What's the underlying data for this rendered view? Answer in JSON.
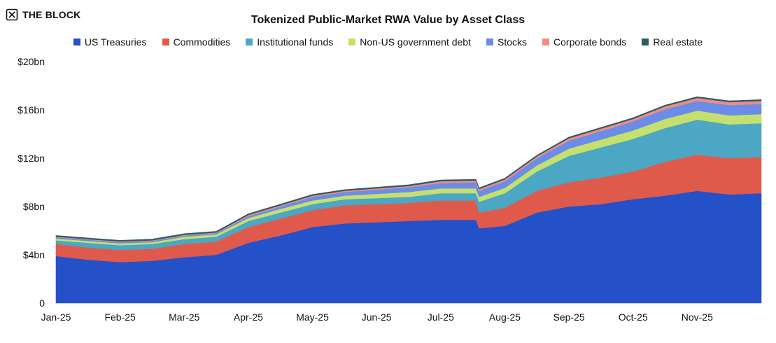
{
  "brand": {
    "name": "THE BLOCK",
    "icon": "the-block-logo-icon"
  },
  "chart_data": {
    "type": "area",
    "stacked": true,
    "title": "Tokenized Public-Market RWA Value by Asset Class",
    "xlabel": "",
    "ylabel": "",
    "y_unit": "bn USD",
    "ylim": [
      0,
      20
    ],
    "yticks": [
      0,
      4,
      8,
      12,
      16,
      20
    ],
    "ytick_labels": [
      "0",
      "$4bn",
      "$8bn",
      "$12bn",
      "$16bn",
      "$20bn"
    ],
    "x": [
      "Jan-25",
      "Jan-25b",
      "Feb-25",
      "Feb-25b",
      "Mar-25",
      "Mar-25b",
      "Apr-25",
      "Apr-25b",
      "May-25",
      "May-25b",
      "Jun-25",
      "Jun-25b",
      "Jul-25",
      "Jul-25b",
      "Jul-25c",
      "Aug-25",
      "Aug-25b",
      "Sep-25",
      "Sep-25b",
      "Oct-25",
      "Oct-25b",
      "Nov-25",
      "Nov-25b",
      "Nov-25c"
    ],
    "x_index": [
      0,
      0.5,
      1,
      1.5,
      2,
      2.5,
      3,
      3.5,
      4,
      4.5,
      5,
      5.5,
      6,
      6.55,
      6.6,
      7,
      7.5,
      8,
      8.5,
      9,
      9.5,
      10,
      10.5,
      11
    ],
    "xtick_labels": [
      "Jan-25",
      "Feb-25",
      "Mar-25",
      "Apr-25",
      "May-25",
      "Jun-25",
      "Jul-25",
      "Aug-25",
      "Sep-25",
      "Oct-25",
      "Nov-25"
    ],
    "grid": false,
    "legend_position": "top-center",
    "series": [
      {
        "name": "US Treasuries",
        "color": "#2450c8",
        "values": [
          3.9,
          3.6,
          3.4,
          3.5,
          3.8,
          4.0,
          5.0,
          5.6,
          6.3,
          6.6,
          6.7,
          6.8,
          6.9,
          6.9,
          6.2,
          6.4,
          7.5,
          8.0,
          8.2,
          8.6,
          8.9,
          9.3,
          9.0,
          9.1
        ]
      },
      {
        "name": "Commodities",
        "color": "#e05a4b",
        "values": [
          1.0,
          1.0,
          1.0,
          1.0,
          1.1,
          1.1,
          1.3,
          1.4,
          1.4,
          1.5,
          1.5,
          1.5,
          1.6,
          1.6,
          1.3,
          1.5,
          1.8,
          2.0,
          2.2,
          2.3,
          2.8,
          3.0,
          3.0,
          3.0
        ]
      },
      {
        "name": "Institutional funds",
        "color": "#4ba7c3",
        "values": [
          0.3,
          0.4,
          0.4,
          0.4,
          0.4,
          0.4,
          0.5,
          0.5,
          0.5,
          0.5,
          0.5,
          0.5,
          0.6,
          0.6,
          0.9,
          1.2,
          1.6,
          2.2,
          2.5,
          2.7,
          2.8,
          2.9,
          2.8,
          2.8
        ]
      },
      {
        "name": "Non-US government debt",
        "color": "#c5e06c",
        "values": [
          0.15,
          0.15,
          0.15,
          0.15,
          0.2,
          0.2,
          0.25,
          0.3,
          0.3,
          0.3,
          0.35,
          0.4,
          0.4,
          0.4,
          0.4,
          0.45,
          0.5,
          0.6,
          0.65,
          0.7,
          0.75,
          0.75,
          0.75,
          0.75
        ]
      },
      {
        "name": "Stocks",
        "color": "#6b8de8",
        "values": [
          0.1,
          0.1,
          0.1,
          0.1,
          0.1,
          0.1,
          0.15,
          0.2,
          0.3,
          0.3,
          0.35,
          0.4,
          0.45,
          0.5,
          0.5,
          0.55,
          0.6,
          0.65,
          0.7,
          0.75,
          0.8,
          0.8,
          0.85,
          0.85
        ]
      },
      {
        "name": "Corporate bonds",
        "color": "#ef8c86",
        "values": [
          0.05,
          0.05,
          0.05,
          0.05,
          0.05,
          0.05,
          0.1,
          0.1,
          0.1,
          0.1,
          0.1,
          0.1,
          0.15,
          0.15,
          0.15,
          0.15,
          0.15,
          0.2,
          0.2,
          0.2,
          0.25,
          0.25,
          0.25,
          0.25
        ]
      },
      {
        "name": "Real estate",
        "color": "#2e5d66",
        "values": [
          0.1,
          0.1,
          0.1,
          0.1,
          0.1,
          0.1,
          0.1,
          0.1,
          0.1,
          0.1,
          0.1,
          0.1,
          0.1,
          0.1,
          0.1,
          0.1,
          0.1,
          0.1,
          0.1,
          0.1,
          0.1,
          0.1,
          0.1,
          0.1
        ]
      }
    ]
  }
}
